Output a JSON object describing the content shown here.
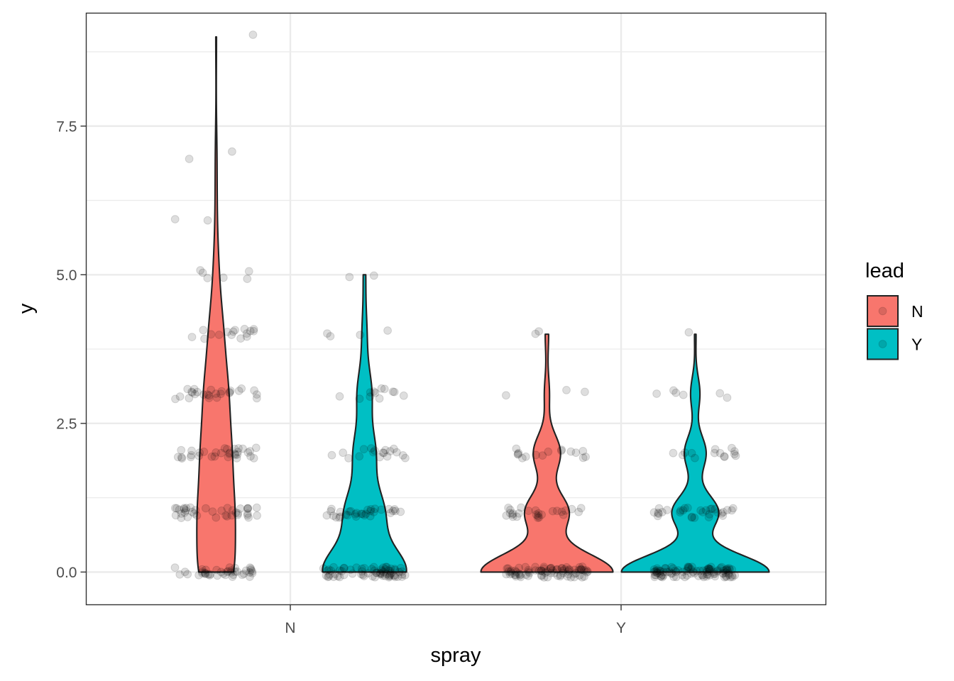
{
  "chart_data": {
    "type": "violin",
    "xlabel": "spray",
    "ylabel": "y",
    "categories": [
      "N",
      "Y"
    ],
    "ylim": [
      -0.55,
      9.4
    ],
    "yticks": [
      0.0,
      2.5,
      5.0,
      7.5
    ],
    "ytick_labels": [
      "0.0",
      "2.5",
      "5.0",
      "7.5"
    ],
    "grid": true,
    "legend": {
      "title": "lead",
      "placement": "right",
      "entries": [
        {
          "label": "N",
          "color": "#F8766D"
        },
        {
          "label": "Y",
          "color": "#00BFC4"
        }
      ]
    },
    "series": [
      {
        "spray": "N",
        "lead": "N",
        "color": "#F8766D",
        "y_max": 9,
        "counts": {
          "0": 40,
          "1": 38,
          "2": 32,
          "3": 26,
          "4": 16,
          "5": 6,
          "6": 2,
          "7": 2,
          "9": 1
        }
      },
      {
        "spray": "N",
        "lead": "Y",
        "color": "#00BFC4",
        "y_max": 5,
        "counts": {
          "0": 70,
          "1": 32,
          "2": 18,
          "3": 12,
          "4": 4,
          "5": 2
        }
      },
      {
        "spray": "Y",
        "lead": "N",
        "color": "#F8766D",
        "y_max": 4,
        "counts": {
          "0": 78,
          "1": 26,
          "2": 16,
          "3": 3,
          "4": 2
        }
      },
      {
        "spray": "Y",
        "lead": "Y",
        "color": "#00BFC4",
        "y_max": 4,
        "counts": {
          "0": 95,
          "1": 30,
          "2": 14,
          "3": 6,
          "4": 1
        }
      }
    ]
  }
}
